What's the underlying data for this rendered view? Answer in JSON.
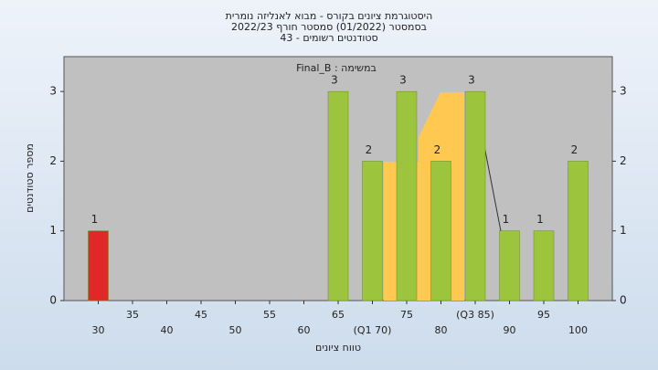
{
  "chart_data": {
    "type": "bar",
    "title": "היסטוגרמת ציונים בקורס - מבוא לאנליזה נומרית",
    "subtitle": "בסמסטר  (01/2022)  סמסטר חורף 2022/23",
    "note": "סטודנטים רשומים - 43",
    "annotation": "Final_B : במשימה",
    "y_label": "מספר סטודנטים",
    "x_label": "טווח ציונים",
    "categories": [
      "30",
      "35",
      "40",
      "45",
      "50",
      "55",
      "60",
      "65",
      "(Q1 70)",
      "75",
      "80",
      "(Q3 85)",
      "90",
      "95",
      "100"
    ],
    "values": [
      1,
      0,
      0,
      0,
      0,
      0,
      0,
      3,
      2,
      3,
      2,
      3,
      1,
      1,
      2
    ],
    "colors": [
      "#e02828",
      "#9cc43c",
      "#9cc43c",
      "#9cc43c",
      "#9cc43c",
      "#9cc43c",
      "#9cc43c",
      "#9cc43c",
      "#9cc43c",
      "#9cc43c",
      "#9cc43c",
      "#9cc43c",
      "#9cc43c",
      "#9cc43c",
      "#9cc43c"
    ],
    "ylim": [
      0,
      3.5
    ],
    "yticks": [
      0,
      1,
      2,
      3
    ],
    "y2lim": [
      0,
      3.5
    ],
    "y2ticks": [
      0,
      1,
      2,
      3
    ]
  }
}
